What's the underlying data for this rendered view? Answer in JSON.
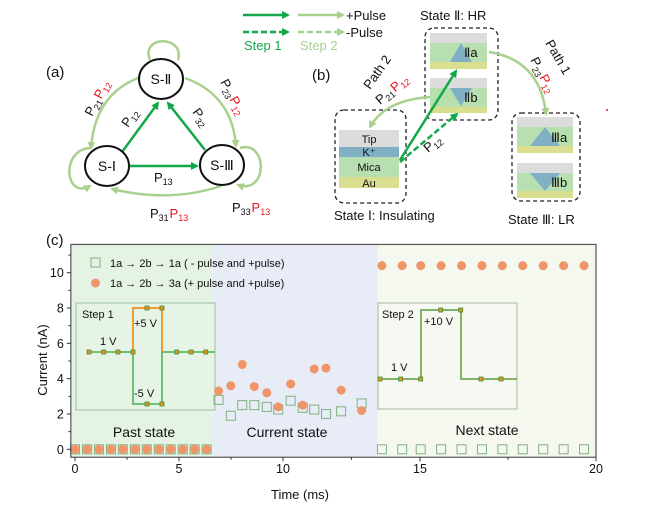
{
  "legend_top": {
    "plus_pulse": "+Pulse",
    "minus_pulse": "-Pulse",
    "step1": "Step 1",
    "step2": "Step 2",
    "step1_color": "#12a84a",
    "step2_color": "#a8d18d"
  },
  "panel_a": {
    "label": "(a)",
    "nodes": {
      "s1": "S-Ⅰ",
      "s2": "S-Ⅱ",
      "s3": "S-Ⅲ"
    },
    "edge_labels": {
      "p12": [
        [
          "P",
          "12",
          "#111"
        ]
      ],
      "p32": [
        [
          "P",
          "32",
          "#111"
        ]
      ],
      "p13": [
        [
          "P",
          "13",
          "#111"
        ]
      ],
      "p21p12": [
        [
          "P",
          "21",
          "#111"
        ],
        [
          "P",
          "12",
          "#e8141c"
        ]
      ],
      "p23p12": [
        [
          "P",
          "23",
          "#111"
        ],
        [
          "P",
          "12",
          "#e8141c"
        ]
      ],
      "p31p13": [
        [
          "P",
          "31",
          "#111"
        ],
        [
          "P",
          "13",
          "#e8141c"
        ]
      ],
      "p33p13": [
        [
          "P",
          "33",
          "#111"
        ],
        [
          "P",
          "13",
          "#e8141c"
        ]
      ]
    }
  },
  "panel_b": {
    "label": "(b)",
    "state1": {
      "title": "State Ⅰ: Insulating",
      "layers": [
        "Tip",
        "K⁺",
        "Mica",
        "Au"
      ]
    },
    "state2": {
      "title": "State Ⅱ: HR",
      "a": "Ⅱa",
      "b": "Ⅱb"
    },
    "state3": {
      "title": "State Ⅲ: LR",
      "a": "Ⅲa",
      "b": "Ⅲb"
    },
    "path1": "Path 1",
    "path2": "Path 2",
    "labels": {
      "p12": [
        [
          "P",
          "12",
          "#111"
        ]
      ],
      "p21p12": [
        [
          "P",
          "21",
          "#111"
        ],
        [
          "P",
          "12",
          "#e8141c"
        ]
      ],
      "p23p12": [
        [
          "P",
          "23",
          "#111"
        ],
        [
          "P",
          "12",
          "#e8141c"
        ]
      ]
    }
  },
  "panel_c": {
    "label": "(c)",
    "regions": {
      "past": "Past state",
      "current": "Current state",
      "next": "Next state"
    },
    "inset1": {
      "title": "Step 1",
      "base": "1 V",
      "high": "+5 V",
      "low": "-5 V"
    },
    "inset2": {
      "title": "Step 2",
      "base": "1 V",
      "high": "+10 V"
    }
  },
  "chart_data": {
    "type": "scatter",
    "xlabel": "Time (ms)",
    "ylabel": "Current (nA)",
    "xlim": [
      -0.2,
      20
    ],
    "ylim": [
      -0.45,
      11.6
    ],
    "xticks": [
      0,
      5,
      10,
      15,
      20
    ],
    "yticks": [
      0,
      2,
      4,
      6,
      8,
      10
    ],
    "grid": false,
    "legend_placement": "top-left",
    "region_colors": {
      "past": "#e4f3e4",
      "current": "#e8ecf7",
      "next": "#f4f8ef"
    },
    "series": [
      {
        "name": "1a → 2b → 1a ( - pulse and +pulse)",
        "marker": "square-open",
        "color": "#7fb27f",
        "x": [
          0,
          0.58,
          1.15,
          1.73,
          2.3,
          2.88,
          3.45,
          4.03,
          4.6,
          5.18,
          5.75,
          6.33,
          6.9,
          7.49,
          8.04,
          8.62,
          9.22,
          9.77,
          10.28,
          10.72,
          11.14,
          11.57,
          12.12,
          12.87,
          13.61,
          14.35,
          15.02,
          15.6,
          16.18,
          16.76,
          17.34,
          17.92,
          18.5,
          19.08,
          19.66
        ],
        "y": [
          0,
          0,
          0,
          0,
          0,
          0,
          0,
          0,
          0,
          0,
          0,
          0,
          2.8,
          1.9,
          2.5,
          2.5,
          2.4,
          2.25,
          2.75,
          2.35,
          2.25,
          2.0,
          2.15,
          2.6,
          0,
          0,
          0,
          0,
          0,
          0,
          0,
          0,
          0,
          0,
          0
        ]
      },
      {
        "name": "1a → 2b → 3a (+ pulse and +pulse)",
        "marker": "circle",
        "color": "#f0956a",
        "x": [
          0,
          0.58,
          1.15,
          1.73,
          2.3,
          2.88,
          3.45,
          4.03,
          4.6,
          5.18,
          5.75,
          6.33,
          6.9,
          7.49,
          8.04,
          8.62,
          9.22,
          9.77,
          10.28,
          10.72,
          11.14,
          11.57,
          12.12,
          12.87,
          13.61,
          14.35,
          15.02,
          15.6,
          16.18,
          16.76,
          17.34,
          17.92,
          18.5,
          19.08,
          19.66
        ],
        "y": [
          0,
          0,
          0,
          0,
          0,
          0,
          0,
          0,
          0,
          0,
          0,
          0,
          3.3,
          3.6,
          4.8,
          3.55,
          3.2,
          2.4,
          3.7,
          2.5,
          4.55,
          4.6,
          3.35,
          2.2,
          10.4,
          10.4,
          10.4,
          10.4,
          10.4,
          10.4,
          10.4,
          10.4,
          10.4,
          10.4,
          10.4
        ]
      }
    ],
    "regions": [
      {
        "name": "Past state",
        "x": [
          -0.2,
          6.6
        ]
      },
      {
        "name": "Current state",
        "x": [
          6.6,
          13.45
        ]
      },
      {
        "name": "Next state",
        "x": [
          13.45,
          20
        ]
      }
    ]
  }
}
